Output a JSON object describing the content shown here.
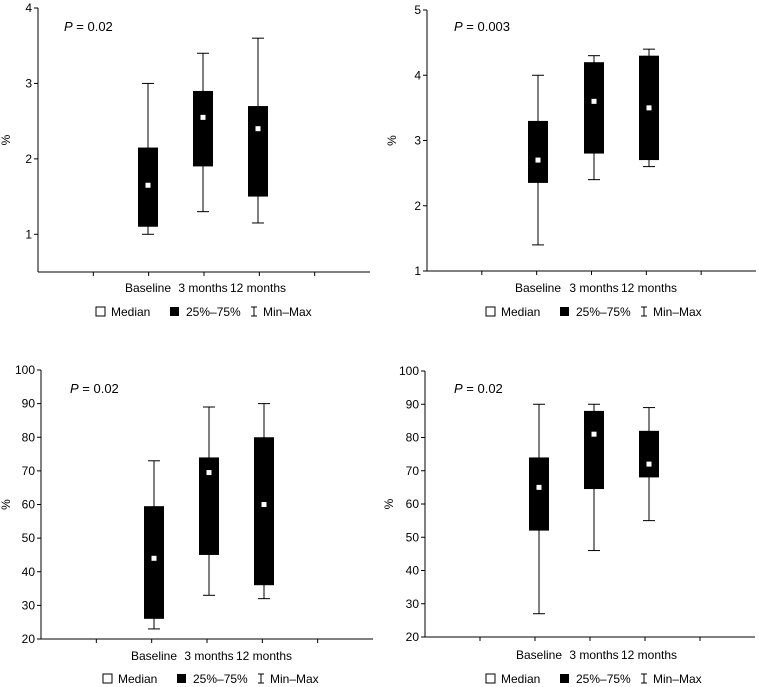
{
  "chart_data": [
    {
      "type": "box",
      "id": "top-left",
      "p_prefix": "P",
      "p_value": " = 0.02",
      "ylabel": "%",
      "ylim": [
        0.5,
        4
      ],
      "yticks": [
        1,
        2,
        3,
        4
      ],
      "categories": [
        "Baseline",
        "3 months",
        "12 months"
      ],
      "series": [
        {
          "name": "Baseline",
          "min": 1.0,
          "q1": 1.1,
          "median": 1.65,
          "q3": 2.15,
          "max": 3.0
        },
        {
          "name": "3 months",
          "min": 1.3,
          "q1": 1.9,
          "median": 2.55,
          "q3": 2.9,
          "max": 3.4
        },
        {
          "name": "12 months",
          "min": 1.15,
          "q1": 1.5,
          "median": 2.4,
          "q3": 2.7,
          "max": 3.6
        }
      ]
    },
    {
      "type": "box",
      "id": "top-right",
      "p_prefix": "P",
      "p_value": " = 0.003",
      "ylabel": "%",
      "ylim": [
        1,
        5
      ],
      "yticks": [
        1,
        2,
        3,
        4,
        5
      ],
      "categories": [
        "Baseline",
        "3 months",
        "12 months"
      ],
      "series": [
        {
          "name": "Baseline",
          "min": 1.4,
          "q1": 2.35,
          "median": 2.7,
          "q3": 3.3,
          "max": 4.0
        },
        {
          "name": "3 months",
          "min": 2.4,
          "q1": 2.8,
          "median": 3.6,
          "q3": 4.2,
          "max": 4.3
        },
        {
          "name": "12 months",
          "min": 2.6,
          "q1": 2.7,
          "median": 3.5,
          "q3": 4.3,
          "max": 4.4
        }
      ]
    },
    {
      "type": "box",
      "id": "bottom-left",
      "p_prefix": "P",
      "p_value": " = 0.02",
      "ylabel": "%",
      "ylim": [
        20,
        100
      ],
      "yticks": [
        20,
        30,
        40,
        50,
        60,
        70,
        80,
        90,
        100
      ],
      "categories": [
        "Baseline",
        "3 months",
        "12 months"
      ],
      "series": [
        {
          "name": "Baseline",
          "min": 23,
          "q1": 26,
          "median": 44,
          "q3": 59.5,
          "max": 73
        },
        {
          "name": "3 months",
          "min": 33,
          "q1": 45,
          "median": 69.5,
          "q3": 74,
          "max": 89
        },
        {
          "name": "12 months",
          "min": 32,
          "q1": 36,
          "median": 60,
          "q3": 80,
          "max": 90
        }
      ]
    },
    {
      "type": "box",
      "id": "bottom-right",
      "p_prefix": "P",
      "p_value": " = 0.02",
      "ylabel": "%",
      "ylim": [
        20,
        100
      ],
      "yticks": [
        20,
        30,
        40,
        50,
        60,
        70,
        80,
        90,
        100
      ],
      "categories": [
        "Baseline",
        "3 months",
        "12 months"
      ],
      "series": [
        {
          "name": "Baseline",
          "min": 27,
          "q1": 52,
          "median": 65,
          "q3": 74,
          "max": 90
        },
        {
          "name": "3 months",
          "min": 46,
          "q1": 64.5,
          "median": 81,
          "q3": 88,
          "max": 90
        },
        {
          "name": "12 months",
          "min": 55,
          "q1": 68,
          "median": 72,
          "q3": 82,
          "max": 89
        }
      ]
    }
  ],
  "legend": {
    "median_label": "Median",
    "iqr_label": "25%–75%",
    "range_label": "Min–Max"
  }
}
